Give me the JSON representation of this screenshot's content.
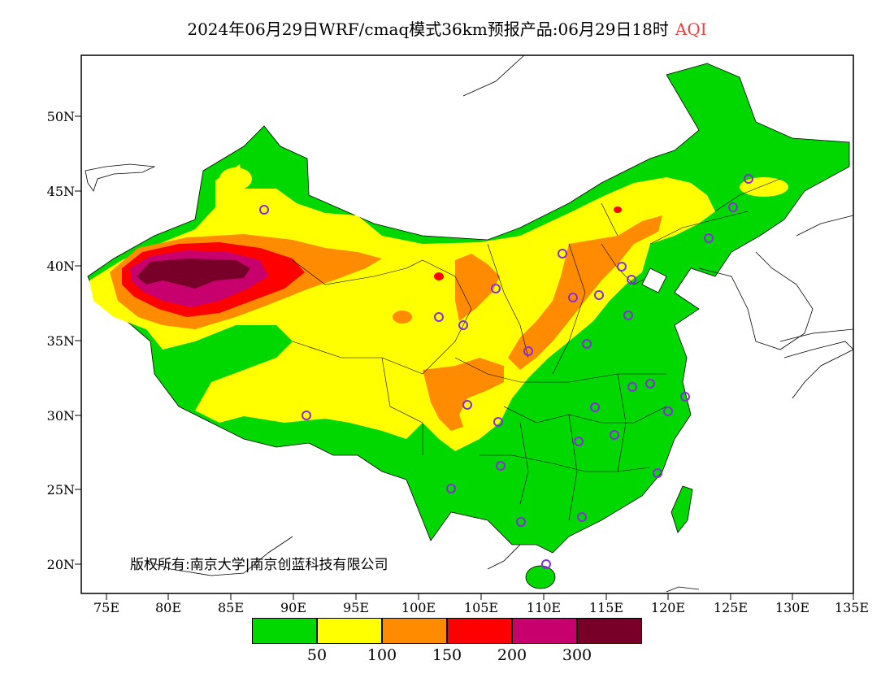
{
  "title": {
    "main": "2024年06月29日WRF/cmaq模式36km预报产品:06月29日18时",
    "product": "AQI"
  },
  "axes": {
    "lat_ticks": [
      "50N",
      "45N",
      "40N",
      "35N",
      "30N",
      "25N",
      "20N"
    ],
    "lon_ticks": [
      "75E",
      "80E",
      "85E",
      "90E",
      "95E",
      "100E",
      "105E",
      "110E",
      "115E",
      "120E",
      "125E",
      "130E",
      "135E"
    ]
  },
  "copyright": "版权所有:南京大学|南京创蓝科技有限公司",
  "legend": {
    "colors": [
      "#00d800",
      "#ffff00",
      "#ff8c00",
      "#ff0000",
      "#c8006e",
      "#780028"
    ],
    "labels": [
      "50",
      "100",
      "150",
      "200",
      "300"
    ]
  },
  "colors": {
    "good": "#00d800",
    "moderate": "#ffff00",
    "unhealthy_sensitive": "#ff8c00",
    "unhealthy": "#ff0000",
    "very_unhealthy": "#c8006e",
    "hazardous": "#780028",
    "station_marker": "#8a2be2"
  }
}
